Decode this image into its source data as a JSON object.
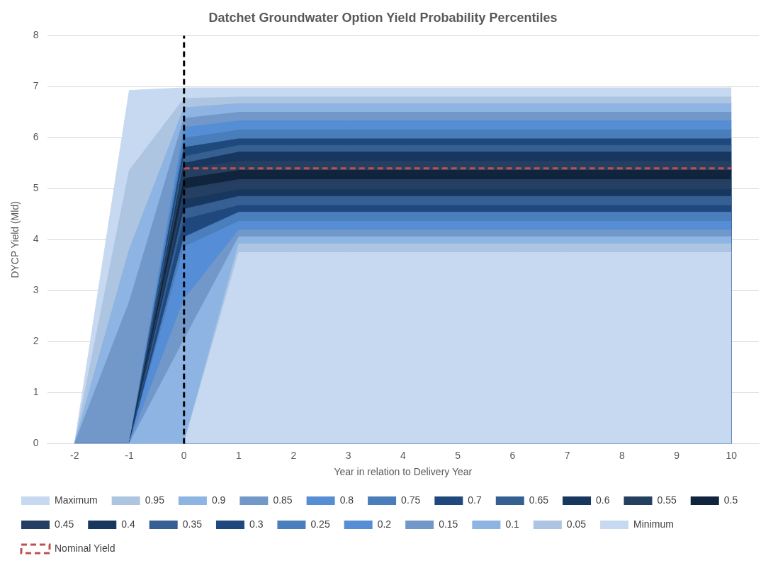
{
  "chart_data": {
    "type": "area",
    "title": "Datchet Groundwater Option Yield Probability Percentiles",
    "xlabel": "Year in relation to Delivery Year",
    "ylabel": "DYCP Yield (Mld)",
    "categories": [
      "-2",
      "-1",
      "0",
      "1",
      "2",
      "3",
      "4",
      "5",
      "6",
      "7",
      "8",
      "9",
      "10"
    ],
    "ylim": [
      0,
      8
    ],
    "yticks": [
      0,
      1,
      2,
      3,
      4,
      5,
      6,
      7,
      8
    ],
    "grid": "y",
    "legend": "bottom",
    "ref_lines": [
      {
        "axis": "x",
        "value": "0",
        "color": "#000000",
        "line_style": "dashed"
      }
    ],
    "series": [
      {
        "name": "Maximum",
        "color": "#c6d9f0",
        "values": [
          0,
          6.93,
          6.98,
          6.98,
          6.98,
          6.98,
          6.98,
          6.98,
          6.98,
          6.98,
          6.98,
          6.98,
          6.98
        ]
      },
      {
        "name": "0.95",
        "color": "#adc5e1",
        "values": [
          0,
          5.36,
          6.77,
          6.8,
          6.8,
          6.8,
          6.8,
          6.8,
          6.8,
          6.8,
          6.8,
          6.8,
          6.8
        ]
      },
      {
        "name": "0.9",
        "color": "#8db4e2",
        "values": [
          0,
          3.81,
          6.59,
          6.67,
          6.67,
          6.67,
          6.67,
          6.67,
          6.67,
          6.67,
          6.67,
          6.67,
          6.67
        ]
      },
      {
        "name": "0.85",
        "color": "#7198c8",
        "values": [
          0,
          2.78,
          6.38,
          6.5,
          6.5,
          6.5,
          6.5,
          6.5,
          6.5,
          6.5,
          6.5,
          6.5,
          6.5
        ]
      },
      {
        "name": "0.8",
        "color": "#558ed5",
        "values": [
          0,
          0,
          6.2,
          6.33,
          6.33,
          6.33,
          6.33,
          6.33,
          6.33,
          6.33,
          6.33,
          6.33,
          6.33
        ]
      },
      {
        "name": "0.75",
        "color": "#4a7ebb",
        "values": [
          0,
          0,
          5.99,
          6.15,
          6.15,
          6.15,
          6.15,
          6.15,
          6.15,
          6.15,
          6.15,
          6.15,
          6.15
        ]
      },
      {
        "name": "0.7",
        "color": "#1f497d",
        "values": [
          0,
          0,
          5.81,
          5.98,
          5.98,
          5.98,
          5.98,
          5.98,
          5.98,
          5.98,
          5.98,
          5.98,
          5.98
        ]
      },
      {
        "name": "0.65",
        "color": "#366092",
        "values": [
          0,
          0,
          5.63,
          5.85,
          5.85,
          5.85,
          5.85,
          5.85,
          5.85,
          5.85,
          5.85,
          5.85,
          5.85
        ]
      },
      {
        "name": "0.6",
        "color": "#17375e",
        "values": [
          0,
          0,
          5.5,
          5.72,
          5.72,
          5.72,
          5.72,
          5.72,
          5.72,
          5.72,
          5.72,
          5.72,
          5.72
        ]
      },
      {
        "name": "0.55",
        "color": "#243f60",
        "values": [
          0,
          0,
          5.39,
          5.54,
          5.54,
          5.54,
          5.54,
          5.54,
          5.54,
          5.54,
          5.54,
          5.54,
          5.54
        ]
      },
      {
        "name": "0.5",
        "color": "#10243e",
        "values": [
          0,
          0,
          5.2,
          5.36,
          5.36,
          5.36,
          5.36,
          5.36,
          5.36,
          5.36,
          5.36,
          5.36,
          5.36
        ]
      },
      {
        "name": "0.45",
        "color": "#243f61",
        "values": [
          0,
          0,
          5.0,
          5.18,
          5.18,
          5.18,
          5.18,
          5.18,
          5.18,
          5.18,
          5.18,
          5.18,
          5.18
        ]
      },
      {
        "name": "0.4",
        "color": "#17375f",
        "values": [
          0,
          0,
          4.78,
          4.98,
          4.98,
          4.98,
          4.98,
          4.98,
          4.98,
          4.98,
          4.98,
          4.98,
          4.98
        ]
      },
      {
        "name": "0.35",
        "color": "#366093",
        "values": [
          0,
          0,
          4.6,
          4.85,
          4.85,
          4.85,
          4.85,
          4.85,
          4.85,
          4.85,
          4.85,
          4.85,
          4.85
        ]
      },
      {
        "name": "0.3",
        "color": "#1f497e",
        "values": [
          0,
          0,
          4.4,
          4.67,
          4.67,
          4.67,
          4.67,
          4.67,
          4.67,
          4.67,
          4.67,
          4.67,
          4.67
        ]
      },
      {
        "name": "0.25",
        "color": "#4a7ebc",
        "values": [
          0,
          0,
          4.05,
          4.54,
          4.54,
          4.54,
          4.54,
          4.54,
          4.54,
          4.54,
          4.54,
          4.54,
          4.54
        ]
      },
      {
        "name": "0.2",
        "color": "#558ed6",
        "values": [
          0,
          0,
          3.86,
          4.36,
          4.36,
          4.36,
          4.36,
          4.36,
          4.36,
          4.36,
          4.36,
          4.36,
          4.36
        ]
      },
      {
        "name": "0.15",
        "color": "#7198c9",
        "values": [
          0,
          0,
          2.83,
          4.19,
          4.19,
          4.19,
          4.19,
          4.19,
          4.19,
          4.19,
          4.19,
          4.19,
          4.19
        ]
      },
      {
        "name": "0.1",
        "color": "#8db4e3",
        "values": [
          0,
          0,
          2.04,
          4.06,
          4.06,
          4.06,
          4.06,
          4.06,
          4.06,
          4.06,
          4.06,
          4.06,
          4.06
        ]
      },
      {
        "name": "0.05",
        "color": "#adc5e2",
        "values": [
          0,
          0,
          0,
          3.92,
          3.92,
          3.92,
          3.92,
          3.92,
          3.92,
          3.92,
          3.92,
          3.92,
          3.92
        ]
      },
      {
        "name": "Minimum",
        "color": "#c6d9f1",
        "values": [
          0,
          0,
          0,
          3.75,
          3.75,
          3.75,
          3.75,
          3.75,
          3.75,
          3.75,
          3.75,
          3.75,
          3.75
        ]
      },
      {
        "name": "Nominal Yield",
        "type": "line",
        "line_style": "dashed",
        "color": "#c0504d",
        "values": [
          null,
          null,
          5.4,
          5.4,
          5.4,
          5.4,
          5.4,
          5.4,
          5.4,
          5.4,
          5.4,
          5.4,
          5.4
        ]
      }
    ]
  }
}
